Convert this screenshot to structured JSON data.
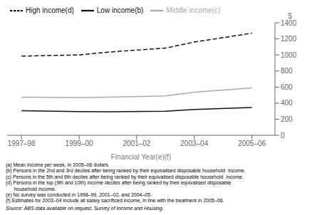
{
  "chart_data": {
    "type": "line",
    "title": "",
    "x_label": "Financial Year(e)(f)",
    "x": [
      1997.5,
      1999.5,
      2000.5,
      2002.5,
      2003.5,
      2005.5
    ],
    "series": [
      {
        "name": "Low income(b)",
        "color": "#111111",
        "line_style": "solid",
        "values": [
          305,
          295,
          293,
          300,
          322,
          345
        ]
      },
      {
        "name": "Middle income(c)",
        "color": "#aaaaaa",
        "line_style": "solid",
        "values": [
          475,
          470,
          475,
          490,
          535,
          590
        ]
      },
      {
        "name": "High income(d)",
        "color": "#111111",
        "line_style": "dashed",
        "values": [
          985,
          1000,
          1035,
          1085,
          1160,
          1270
        ]
      }
    ],
    "xlim": [
      1997.0,
      2006.3
    ],
    "xticks": [
      {
        "value": 1997.5,
        "label": "1997–98"
      },
      {
        "value": 1999.5,
        "label": "1999–00"
      },
      {
        "value": 2001.5,
        "label": "2001–02"
      },
      {
        "value": 2003.5,
        "label": "2003–04"
      },
      {
        "value": 2005.5,
        "label": "2005–06"
      }
    ],
    "ylim": [
      0,
      1400
    ],
    "yticks": [
      0,
      200,
      400,
      600,
      800,
      1000,
      1200,
      1400
    ],
    "y_label": "$",
    "legend": "upper left",
    "grid": false,
    "footnotes": [
      "(a) Mean income per week, in 2005–06 dollars.",
      "(b) Persons in the 2nd and 3rd deciles after being ranked by their equivalised disposable household  income.",
      "(c) Persons in the 5th and 6th deciles after being ranked by their equivalised disposable household  income.",
      "(d) Persons in the top (9th and 10th) income deciles after being ranked by their equivalised disposable",
      "      household income.",
      "(e) No survey was conducted in 1998–99, 2001–02, and 2004–05.",
      "(f) Estimates for 2003–04 include all salary sacrificed income, in line with the treatment in 2005–06."
    ],
    "source": "Source: ABS data available on request, Survey of Income and Housing."
  }
}
